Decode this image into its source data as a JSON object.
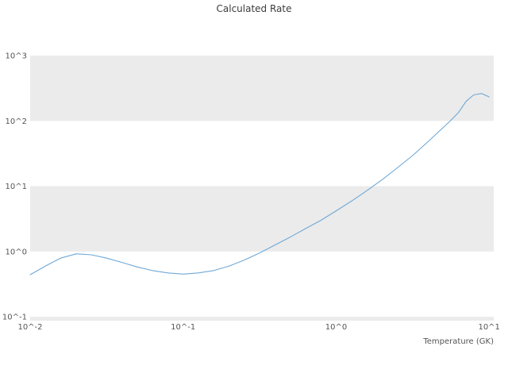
{
  "chart_data": {
    "type": "line",
    "title": "Calculated Rate",
    "xlabel": "Temperature (GK)",
    "ylabel": "",
    "x_scale": "log",
    "y_scale": "log",
    "legend": "none",
    "grid": "banded-horizontal",
    "axes": {
      "xlim_log": [
        -2.0,
        1.03
      ],
      "ylim_log": [
        -1.06,
        3.05
      ],
      "x_ticks": [
        {
          "label": "10^-2",
          "value": 0.01
        },
        {
          "label": "10^-1",
          "value": 0.1
        },
        {
          "label": "10^0",
          "value": 1
        },
        {
          "label": "10^1",
          "value": 10
        }
      ],
      "y_ticks": [
        {
          "label": "10^3",
          "value": 1000
        },
        {
          "label": "10^2",
          "value": 100
        },
        {
          "label": "10^1",
          "value": 10
        },
        {
          "label": "10^0",
          "value": 1
        },
        {
          "label": "10^-1",
          "value": 0.1
        }
      ]
    },
    "style": {
      "band_color": "#ebebeb",
      "line_color": "#6fa8d6",
      "tick_text_color": "#555555",
      "title_color": "#3c3c3c",
      "background": "#ffffff"
    },
    "series": [
      {
        "name": "calculated-rate",
        "color": "#6fa8d6",
        "x": [
          0.01,
          0.0126,
          0.0158,
          0.02,
          0.0251,
          0.0316,
          0.0398,
          0.0501,
          0.0631,
          0.0794,
          0.1,
          0.126,
          0.158,
          0.2,
          0.251,
          0.316,
          0.398,
          0.501,
          0.631,
          0.794,
          1.0,
          1.26,
          1.58,
          2.0,
          2.51,
          3.16,
          3.98,
          5.01,
          5.62,
          6.31,
          7.08,
          7.94,
          8.91,
          10.0
        ],
        "y": [
          0.44,
          0.6,
          0.79,
          0.92,
          0.89,
          0.79,
          0.68,
          0.58,
          0.51,
          0.47,
          0.45,
          0.47,
          0.51,
          0.6,
          0.74,
          0.95,
          1.26,
          1.66,
          2.24,
          3.0,
          4.2,
          5.9,
          8.5,
          12.6,
          19.1,
          29.5,
          47.9,
          79.4,
          102,
          135,
          200,
          251,
          263,
          234
        ]
      }
    ]
  }
}
